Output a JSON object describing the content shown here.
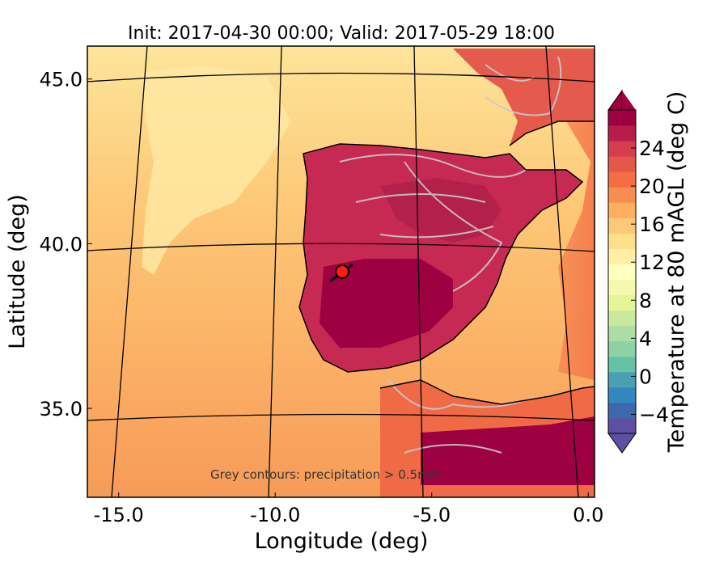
{
  "title": "Init: 2017-04-30 00:00; Valid: 2017-05-29 18:00",
  "annotation": "Grey contours: precipitation > 0.5mm",
  "colors": {
    "ocean_north": "#fde08f",
    "ocean_mid": "#fdbf6f",
    "ocean_south": "#f99a58",
    "land_hot": "#c62a52",
    "land_very_hot": "#9e0142",
    "land_warm": "#ef6a45",
    "precip_contour": "#c9c9c9",
    "coastline": "#000000",
    "site_marker": "#ff1a1a"
  },
  "chart_data": {
    "type": "heatmap",
    "title": "Init: 2017-04-30 00:00; Valid: 2017-05-29 18:00",
    "xlabel": "Longitude (deg)",
    "ylabel": "Latitude (deg)",
    "xlim": [
      -16,
      0.2
    ],
    "ylim": [
      32.3,
      46.0
    ],
    "x_ticks": [
      {
        "value": -15.0,
        "label": "-15.0"
      },
      {
        "value": -10.0,
        "label": "-10.0"
      },
      {
        "value": -5.0,
        "label": "-5.0"
      },
      {
        "value": 0.0,
        "label": "0.0"
      }
    ],
    "y_ticks": [
      {
        "value": 45.0,
        "label": "45.0"
      },
      {
        "value": 40.0,
        "label": "40.0"
      },
      {
        "value": 35.0,
        "label": "35.0"
      }
    ],
    "meridians": [
      -15,
      -10,
      -5,
      0
    ],
    "parallels": [
      45,
      40,
      35
    ],
    "marker": {
      "lon": -7.6,
      "lat": 39.3
    },
    "colorbar": {
      "label": "Temperature at 80 mAGL (deg C)",
      "min": -6,
      "max": 28,
      "extend": "both",
      "ticks": [
        {
          "value": -4,
          "label": "−4"
        },
        {
          "value": 0,
          "label": "0"
        },
        {
          "value": 4,
          "label": "4"
        },
        {
          "value": 8,
          "label": "8"
        },
        {
          "value": 12,
          "label": "12"
        },
        {
          "value": 16,
          "label": "16"
        },
        {
          "value": 20,
          "label": "20"
        },
        {
          "value": 24,
          "label": "24"
        }
      ],
      "colors": [
        "#5e4fa2",
        "#3d68ae",
        "#3288bd",
        "#4aa0b2",
        "#66c2a5",
        "#8dd2a4",
        "#abdda4",
        "#c9e99e",
        "#e6f598",
        "#f4faad",
        "#ffffbf",
        "#fff0a6",
        "#fee08b",
        "#fdc877",
        "#fdae61",
        "#f88d52",
        "#f46d43",
        "#e55748",
        "#d53e4f",
        "#b81d4a",
        "#9e0142"
      ]
    }
  }
}
